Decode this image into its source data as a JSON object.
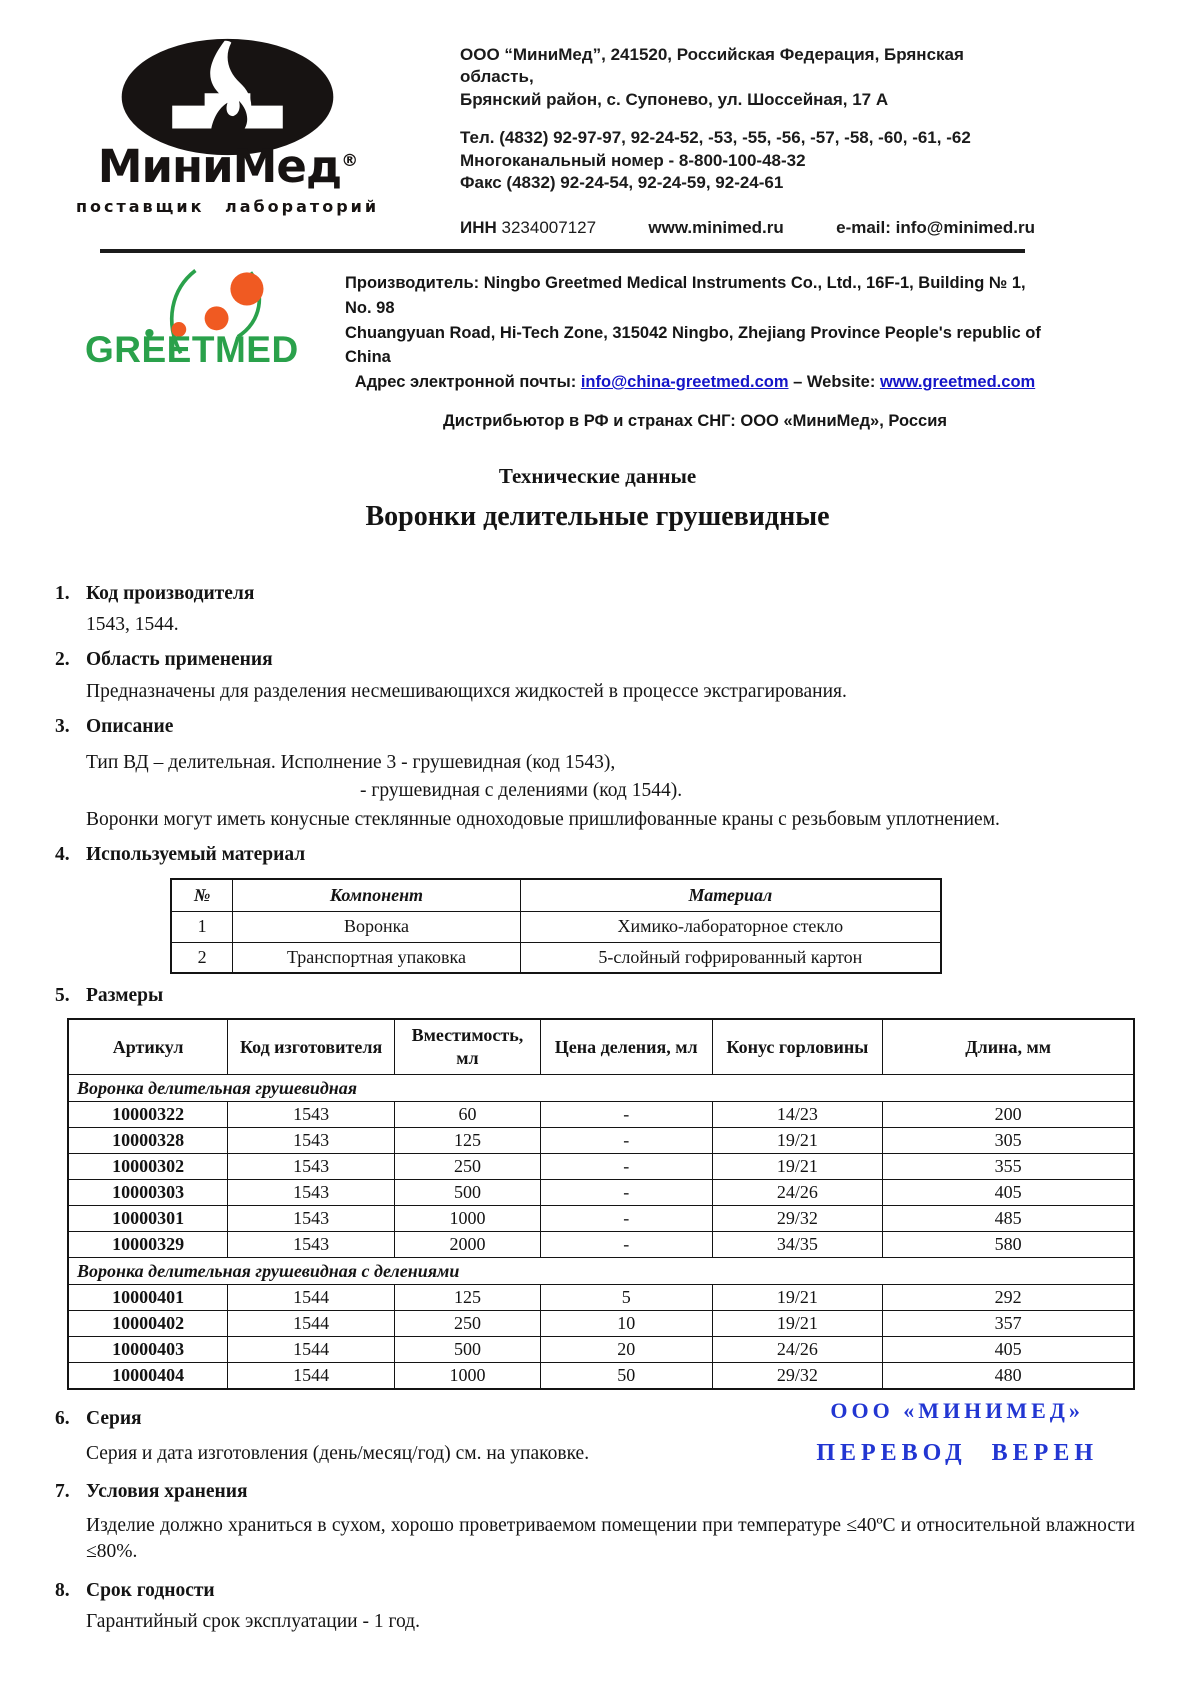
{
  "colors": {
    "greetmed_green": "#2aa14b",
    "greetmed_orange": "#f05a22",
    "link_blue": "#1515c8",
    "stamp_blue": "#2236d2",
    "ink_black": "#171312"
  },
  "header": {
    "logo": {
      "brand": "МиниМед",
      "registered": "®",
      "tagline": "поставщик лабораторий",
      "icon": "candle-in-oval"
    },
    "address_line1": "ООО “МиниМед”, 241520, Российская Федерация, Брянская область,",
    "address_line2": "Брянский район, с. Супонево, ул. Шоссейная, 17 А",
    "phone": "Тел. (4832) 92-97-97, 92-24-52, -53, -55, -56, -57, -58, -60, -61, -62",
    "multichannel": "Многоканальный номер - 8-800-100-48-32",
    "fax": "Факс (4832) 92-24-54, 92-24-59, 92-24-61",
    "inn_label": "ИНН",
    "inn_value": "3234007127",
    "website": "www.minimed.ru",
    "email": "e-mail: info@minimed.ru"
  },
  "manufacturer": {
    "logo_text": "GREETMED",
    "line1": "Производитель: Ningbo Greetmed Medical Instruments Co., Ltd., 16F-1, Building № 1, No. 98",
    "line2": "Chuangyuan Road, Hi-Tech Zone, 315042 Ningbo, Zhejiang Province People's republic of China",
    "email_label": "Адрес электронной почты:",
    "email_link": "info@china-greetmed.com",
    "website_sep": "– Website:",
    "website_link": "www.greetmed.com",
    "distributor": "Дистрибьютор в РФ и странах СНГ: ООО «МиниМед», Россия"
  },
  "titles": {
    "subtitle": "Технические данные",
    "title": "Воронки делительные грушевидные"
  },
  "section1": {
    "num": "1.",
    "heading": "Код производителя",
    "body": "1543, 1544."
  },
  "section2": {
    "num": "2.",
    "heading": "Область применения",
    "body": "Предназначены для разделения несмешивающихся жидкостей в процессе экстрагирования."
  },
  "section3": {
    "num": "3.",
    "heading": "Описание",
    "line1": "Тип ВД – делительная. Исполнение 3 - грушевидная (код 1543),",
    "line2": "- грушевидная с делениями (код 1544).",
    "line3": "Воронки могут иметь конусные стеклянные одноходовые пришлифованные краны с резьбовым уплотнением."
  },
  "section4": {
    "num": "4.",
    "heading": "Используемый материал",
    "table": {
      "headers": [
        "№",
        "Компонент",
        "Материал"
      ],
      "rows": [
        [
          "1",
          "Воронка",
          "Химико-лабораторное стекло"
        ],
        [
          "2",
          "Транспортная упаковка",
          "5-слойный гофрированный картон"
        ]
      ]
    }
  },
  "section5": {
    "num": "5.",
    "heading": "Размеры",
    "table": {
      "headers": [
        "Артикул",
        "Код изготовителя",
        "Вместимость, мл",
        "Цена деления, мл",
        "Конус горловины",
        "Длина, мм"
      ],
      "groups": [
        {
          "label": "Воронка делительная грушевидная",
          "rows": [
            [
              "10000322",
              "1543",
              "60",
              "-",
              "14/23",
              "200"
            ],
            [
              "10000328",
              "1543",
              "125",
              "-",
              "19/21",
              "305"
            ],
            [
              "10000302",
              "1543",
              "250",
              "-",
              "19/21",
              "355"
            ],
            [
              "10000303",
              "1543",
              "500",
              "-",
              "24/26",
              "405"
            ],
            [
              "10000301",
              "1543",
              "1000",
              "-",
              "29/32",
              "485"
            ],
            [
              "10000329",
              "1543",
              "2000",
              "-",
              "34/35",
              "580"
            ]
          ]
        },
        {
          "label": "Воронка делительная грушевидная с делениями",
          "rows": [
            [
              "10000401",
              "1544",
              "125",
              "5",
              "19/21",
              "292"
            ],
            [
              "10000402",
              "1544",
              "250",
              "10",
              "19/21",
              "357"
            ],
            [
              "10000403",
              "1544",
              "500",
              "20",
              "24/26",
              "405"
            ],
            [
              "10000404",
              "1544",
              "1000",
              "50",
              "29/32",
              "480"
            ]
          ]
        }
      ]
    }
  },
  "section6": {
    "num": "6.",
    "heading": "Серия",
    "body": "Серия и дата изготовления (день/месяц/год) см. на упаковке."
  },
  "stamp": {
    "line1": "ООО «МИНИМЕД»",
    "line2": "ПЕРЕВОД ВЕРЕН"
  },
  "section7": {
    "num": "7.",
    "heading": "Условия хранения",
    "body": "Изделие должно храниться в сухом, хорошо проветриваемом помещении при температуре ≤40ºС и относительной влажности ≤80%."
  },
  "section8": {
    "num": "8.",
    "heading": "Срок годности",
    "body": "Гарантийный срок эксплуатации - 1 год."
  }
}
